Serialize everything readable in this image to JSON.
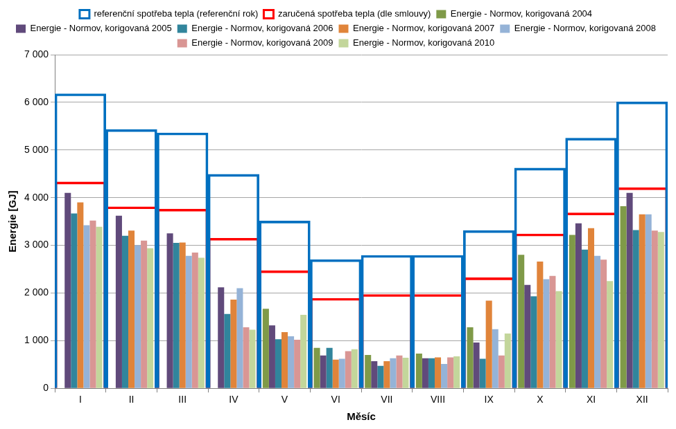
{
  "chart_data": {
    "type": "bar",
    "x_label": "Měsíc",
    "y_label": "Energie [GJ]",
    "categories": [
      "I",
      "II",
      "III",
      "IV",
      "V",
      "VI",
      "VII",
      "VIII",
      "IX",
      "X",
      "XI",
      "XII"
    ],
    "series": [
      {
        "name": "Energie - Normov, korigovaná 2004",
        "color": "#7f9a48",
        "type": "bar",
        "values": [
          null,
          null,
          null,
          null,
          1670,
          850,
          700,
          730,
          1280,
          2800,
          3220,
          3820
        ]
      },
      {
        "name": "Energie - Normov, korigovaná 2005",
        "color": "#604a7b",
        "type": "bar",
        "values": [
          4100,
          3620,
          3250,
          2120,
          1320,
          690,
          570,
          630,
          960,
          2170,
          3460,
          4100
        ]
      },
      {
        "name": "Energie - Normov, korigovaná 2006",
        "color": "#31859c",
        "type": "bar",
        "values": [
          3670,
          3200,
          3050,
          1560,
          1030,
          850,
          470,
          630,
          620,
          1930,
          2910,
          3320
        ]
      },
      {
        "name": "Energie - Normov, korigovaná 2007",
        "color": "#e0843a",
        "type": "bar",
        "values": [
          3900,
          3310,
          3060,
          1860,
          1180,
          600,
          570,
          650,
          1840,
          2660,
          3360,
          3650
        ]
      },
      {
        "name": "Energie - Normov, korigovaná 2008",
        "color": "#95b3d7",
        "type": "bar",
        "values": [
          3420,
          3000,
          2780,
          2100,
          1090,
          620,
          630,
          510,
          1240,
          2290,
          2780,
          3650
        ]
      },
      {
        "name": "Energie - Normov, korigovaná 2009",
        "color": "#d99694",
        "type": "bar",
        "values": [
          3520,
          3100,
          2850,
          1280,
          1020,
          780,
          690,
          650,
          690,
          2360,
          2700,
          3310
        ]
      },
      {
        "name": "Energie - Normov, korigovaná 2010",
        "color": "#c3d69b",
        "type": "bar",
        "values": [
          3390,
          2940,
          2740,
          1230,
          1540,
          820,
          640,
          670,
          1150,
          2040,
          2250,
          3280
        ]
      },
      {
        "name": "referenční spotřeba tepla (referenční rok)",
        "color": "#0070c0",
        "type": "outline",
        "values": [
          6180,
          5430,
          5360,
          4490,
          3510,
          2700,
          2790,
          2790,
          3310,
          4620,
          5250,
          6010
        ]
      },
      {
        "name": "zaručená spotřeba tepla (dle smlouvy)",
        "color": "#ff0000",
        "type": "outline",
        "values": [
          4330,
          3810,
          3760,
          3150,
          2470,
          1890,
          1970,
          1970,
          2320,
          3240,
          3680,
          4210
        ]
      }
    ],
    "ylim": [
      0,
      7000
    ],
    "yticks": [
      {
        "value": 0,
        "label": "0"
      },
      {
        "value": 1000,
        "label": "1 000"
      },
      {
        "value": 2000,
        "label": "2 000"
      },
      {
        "value": 3000,
        "label": "3 000"
      },
      {
        "value": 4000,
        "label": "4 000"
      },
      {
        "value": 5000,
        "label": "5 000"
      },
      {
        "value": 6000,
        "label": "6 000"
      },
      {
        "value": 7000,
        "label": "7 000"
      }
    ],
    "grid": true,
    "legend": "top"
  }
}
